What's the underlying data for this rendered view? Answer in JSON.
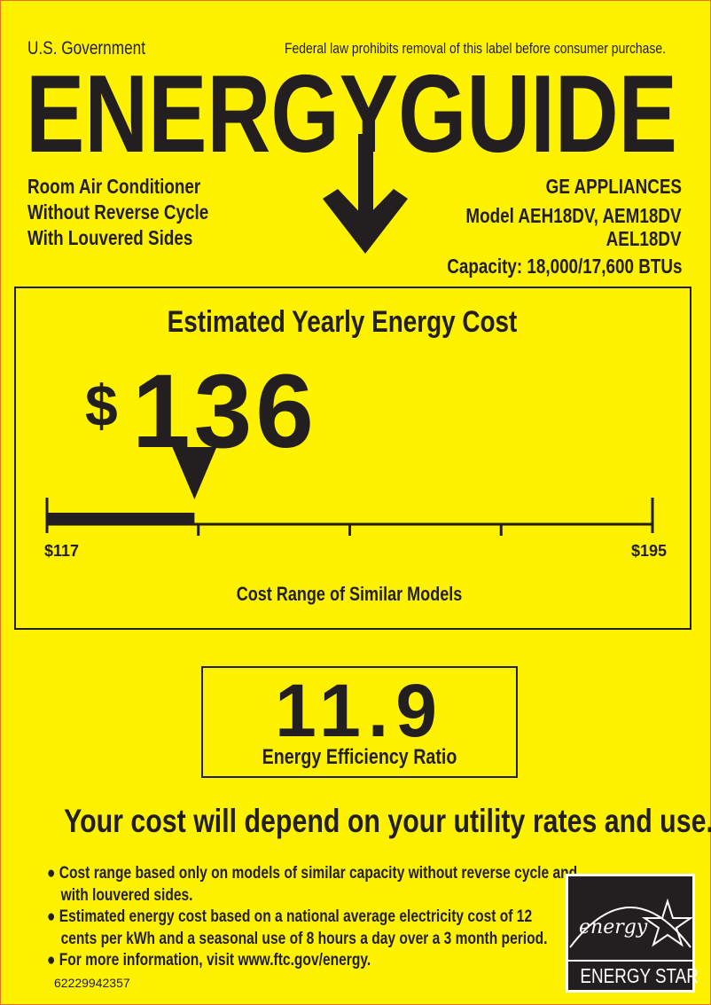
{
  "header": {
    "government": "U.S. Government",
    "federal_notice": "Federal law prohibits removal of this label before consumer purchase.",
    "title": "ENERGYGUIDE"
  },
  "product": {
    "type_lines": [
      "Room Air Conditioner",
      "Without Reverse Cycle",
      "With Louvered Sides"
    ],
    "manufacturer": "GE APPLIANCES",
    "model_line1": "Model AEH18DV, AEM18DV",
    "model_line2": "AEL18DV",
    "capacity": "Capacity: 18,000/17,600 BTUs"
  },
  "cost": {
    "title": "Estimated Yearly Energy Cost",
    "currency": "$",
    "amount": "136",
    "value": 136,
    "range_min": 117,
    "range_max": 195,
    "min_label": "$117",
    "max_label": "$195",
    "range_caption": "Cost Range of Similar Models"
  },
  "efficiency": {
    "value": "11.9",
    "label": "Energy Efficiency Ratio"
  },
  "disclaimer": "Your cost will depend on your utility rates and use.",
  "notes": [
    [
      "Cost range based only on models of similar capacity without reverse cycle and",
      "with louvered sides."
    ],
    [
      "Estimated energy cost based on a national average electricity cost of 12",
      "cents per kWh and a seasonal use of 8 hours a day over a 3 month period."
    ],
    [
      "For more information, visit www.ftc.gov/energy."
    ]
  ],
  "label_number": "62229942357",
  "energy_star": {
    "script": "energy",
    "caption": "ENERGY STAR"
  },
  "colors": {
    "background": "#fff200",
    "ink": "#231f20",
    "border": "#e8731e"
  }
}
